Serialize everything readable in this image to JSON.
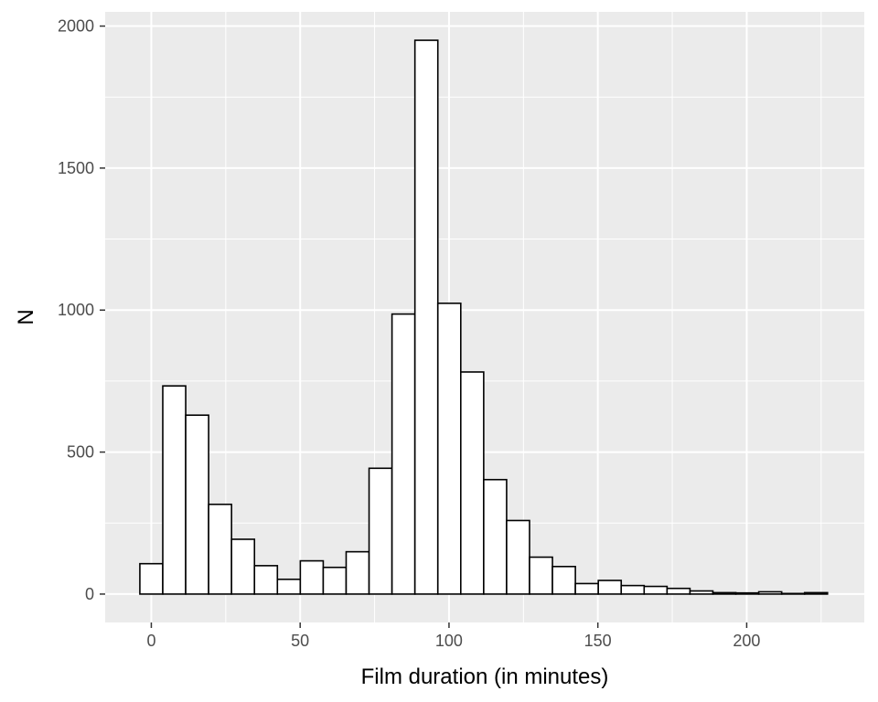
{
  "chart_data": {
    "type": "bar",
    "title": "",
    "xlabel": "Film duration (in minutes)",
    "ylabel": "N",
    "xlim": [
      -15.5,
      239.5
    ],
    "ylim": [
      -100,
      2050
    ],
    "bin_width": 7.7,
    "x_ticks": [
      0,
      50,
      100,
      150,
      200
    ],
    "x_tick_labels": [
      "0",
      "50",
      "100",
      "150",
      "200"
    ],
    "y_ticks": [
      0,
      500,
      1000,
      1500,
      2000
    ],
    "y_tick_labels": [
      "0",
      "500",
      "1000",
      "1500",
      "2000"
    ],
    "x_minor_ticks": [
      25,
      75,
      125,
      175,
      225
    ],
    "y_minor_ticks": [
      250,
      750,
      1250,
      1750
    ],
    "grid": true,
    "bins": [
      {
        "x": 0,
        "count": 107
      },
      {
        "x": 7.7,
        "count": 733
      },
      {
        "x": 15.4,
        "count": 630
      },
      {
        "x": 23.1,
        "count": 316
      },
      {
        "x": 30.8,
        "count": 193
      },
      {
        "x": 38.5,
        "count": 100
      },
      {
        "x": 46.2,
        "count": 52
      },
      {
        "x": 53.9,
        "count": 117
      },
      {
        "x": 61.6,
        "count": 94
      },
      {
        "x": 69.3,
        "count": 149
      },
      {
        "x": 77.0,
        "count": 443
      },
      {
        "x": 84.7,
        "count": 986
      },
      {
        "x": 92.4,
        "count": 1950
      },
      {
        "x": 100.1,
        "count": 1024
      },
      {
        "x": 107.8,
        "count": 782
      },
      {
        "x": 115.5,
        "count": 403
      },
      {
        "x": 123.2,
        "count": 259
      },
      {
        "x": 130.9,
        "count": 130
      },
      {
        "x": 138.6,
        "count": 97
      },
      {
        "x": 146.3,
        "count": 37
      },
      {
        "x": 154.0,
        "count": 48
      },
      {
        "x": 161.7,
        "count": 30
      },
      {
        "x": 169.4,
        "count": 27
      },
      {
        "x": 177.1,
        "count": 20
      },
      {
        "x": 184.8,
        "count": 11
      },
      {
        "x": 192.5,
        "count": 5
      },
      {
        "x": 200.2,
        "count": 4
      },
      {
        "x": 207.9,
        "count": 8
      },
      {
        "x": 215.6,
        "count": 2
      },
      {
        "x": 223.3,
        "count": 5
      }
    ],
    "colors": {
      "panel": "#ebebeb",
      "grid": "#ffffff",
      "bar_fill": "#ffffff",
      "bar_stroke": "#000000",
      "tick_label": "#4d4d4d",
      "tick_mark": "#333333"
    }
  }
}
